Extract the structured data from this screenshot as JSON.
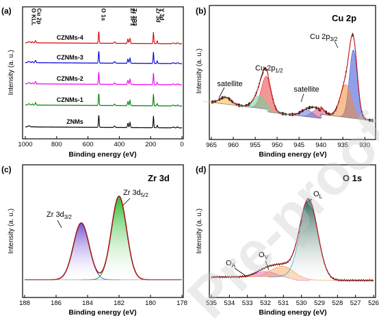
{
  "watermark": "Pre-proof",
  "chart_data": [
    {
      "panel": "(a)",
      "type": "line",
      "title": "",
      "xlabel": "Binding energy (eV)",
      "ylabel": "Intensity (a. u.)",
      "xlim": [
        1000,
        0
      ],
      "x_reversed": true,
      "xticks": [
        "1000",
        "800",
        "600",
        "400",
        "200",
        "0"
      ],
      "series": [
        {
          "name": "ZNMs",
          "color": "#000000"
        },
        {
          "name": "CZNMs-1",
          "color": "#008000"
        },
        {
          "name": "CZNMs-2",
          "color": "#ee00ee"
        },
        {
          "name": "CZNMs-3",
          "color": "#0000dd"
        },
        {
          "name": "CZNMs-4",
          "color": "#dd0000"
        }
      ],
      "peak_labels": [
        {
          "text": "O KLL",
          "x": 977
        },
        {
          "text": "Cu 2p",
          "x": 940
        },
        {
          "text": "O 1s",
          "x": 531
        },
        {
          "text": "Zr 3P1",
          "x": 345
        },
        {
          "text": "Zr 3P3",
          "x": 332
        },
        {
          "text": "Zr 3d",
          "x": 182
        },
        {
          "text": "Y 3d",
          "x": 158
        }
      ]
    },
    {
      "panel": "(b)",
      "type": "line",
      "title": "Cu 2p",
      "xlabel": "Binding energy (eV)",
      "ylabel": "Intensity (a. u.)",
      "xlim": [
        965,
        928
      ],
      "x_reversed": true,
      "xticks": [
        "965",
        "960",
        "955",
        "950",
        "945",
        "940",
        "935",
        "930"
      ],
      "annotations": [
        "satellite",
        "Cu 2p1/2",
        "satellite",
        "Cu 2p3/2"
      ],
      "fitted_peaks": [
        {
          "center": 932.6,
          "color": "#3a4fd8"
        },
        {
          "center": 934.3,
          "color": "#f08a3c"
        },
        {
          "center": 940.8,
          "color": "#e0507a"
        },
        {
          "center": 943.2,
          "color": "#5a7ce0"
        },
        {
          "center": 952.5,
          "color": "#e84040"
        },
        {
          "center": 954.0,
          "color": "#6ad6a0"
        },
        {
          "center": 961.8,
          "color": "#f0c040"
        }
      ]
    },
    {
      "panel": "(c)",
      "type": "line",
      "title": "Zr 3d",
      "xlabel": "Binding energy (eV)",
      "ylabel": "Intensity (a. u.)",
      "xlim": [
        188,
        178
      ],
      "x_reversed": true,
      "xticks": [
        "188",
        "186",
        "184",
        "182",
        "180",
        "178"
      ],
      "annotations": [
        "Zr 3d3/2",
        "Zr 3d5/2"
      ],
      "fitted_peaks": [
        {
          "center": 184.4,
          "color": "#7b52d6"
        },
        {
          "center": 182.0,
          "color": "#22b422"
        }
      ]
    },
    {
      "panel": "(d)",
      "type": "line",
      "title": "O 1s",
      "xlabel": "Binding energy (eV)",
      "ylabel": "Intensity (a. u.)",
      "xlim": [
        535,
        526
      ],
      "x_reversed": true,
      "xticks": [
        "535",
        "534",
        "533",
        "532",
        "531",
        "530",
        "529",
        "528",
        "527",
        "526"
      ],
      "annotations": [
        "OA",
        "OV",
        "OL"
      ],
      "fitted_peaks": [
        {
          "center": 532.0,
          "color": "#e070e0"
        },
        {
          "center": 531.0,
          "color": "#f4a050"
        },
        {
          "center": 529.6,
          "color": "#2e6a5a"
        }
      ]
    }
  ]
}
